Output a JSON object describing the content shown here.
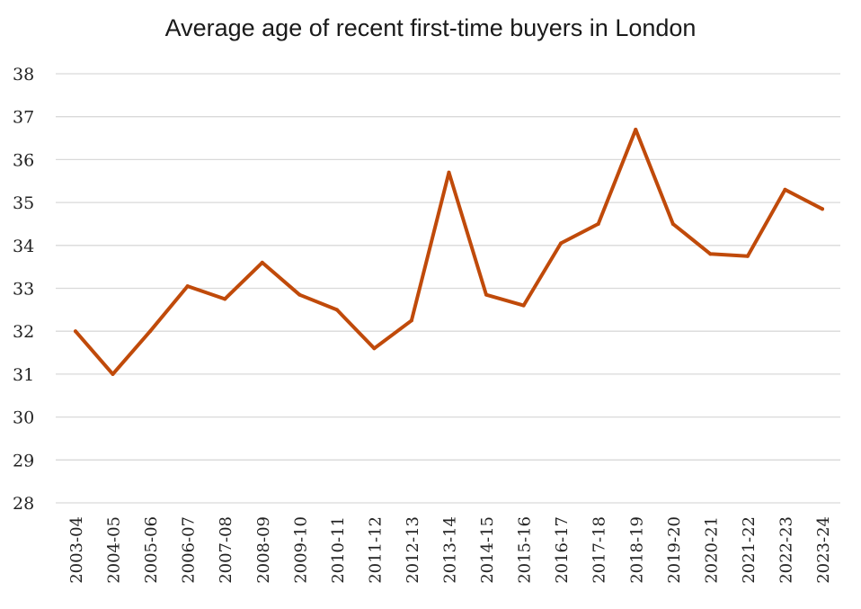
{
  "chart_data": {
    "type": "line",
    "title": "Average age of recent first-time buyers in London",
    "xlabel": "",
    "ylabel": "",
    "ylim": [
      28,
      38
    ],
    "yticks": [
      "28",
      "29",
      "30",
      "31",
      "32",
      "33",
      "34",
      "35",
      "36",
      "37",
      "38"
    ],
    "grid": true,
    "legend": "none",
    "line_color": "#C04A0A",
    "categories": [
      "2003-04",
      "2004-05",
      "2005-06",
      "2006-07",
      "2007-08",
      "2008-09",
      "2009-10",
      "2010-11",
      "2011-12",
      "2012-13",
      "2013-14",
      "2014-15",
      "2015-16",
      "2016-17",
      "2017-18",
      "2018-19",
      "2019-20",
      "2020-21",
      "2021-22",
      "2022-23",
      "2023-24"
    ],
    "series": [
      {
        "values": [
          32.0,
          31.0,
          32.0,
          33.05,
          32.75,
          33.6,
          32.85,
          32.5,
          31.6,
          32.25,
          35.7,
          32.85,
          32.6,
          34.05,
          34.5,
          36.7,
          34.5,
          33.8,
          33.75,
          35.3,
          34.85
        ]
      }
    ]
  }
}
